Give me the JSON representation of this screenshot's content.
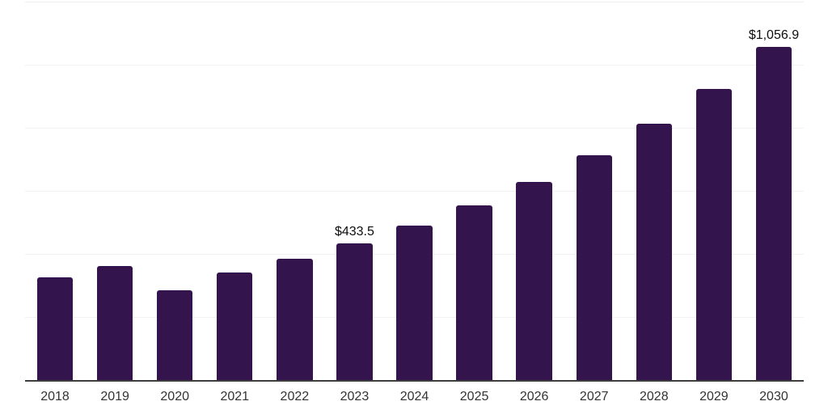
{
  "chart": {
    "background": "#ffffff",
    "bar_color": "#33144c",
    "axis_line_color": "#3d3d3d",
    "gridline_color": "#f2f2f2",
    "top_gridline_color": "#ececec",
    "tick_label_color": "#333333",
    "data_label_color": "#0d0d0d"
  },
  "chart_data": {
    "type": "bar",
    "title": "",
    "xlabel": "",
    "ylabel": "",
    "categories": [
      "2018",
      "2019",
      "2020",
      "2021",
      "2022",
      "2023",
      "2024",
      "2025",
      "2026",
      "2027",
      "2028",
      "2029",
      "2030"
    ],
    "values": [
      326,
      362,
      285,
      341,
      385,
      433.5,
      490,
      554,
      628,
      712,
      814,
      924,
      1056.9
    ],
    "data_labels": {
      "2023": "$433.5",
      "2030": "$1,056.9"
    },
    "ylim": [
      0,
      1200
    ],
    "gridline_step": 200,
    "grid": "horizontal",
    "y_tick_labels_visible": false,
    "legend": "none"
  }
}
